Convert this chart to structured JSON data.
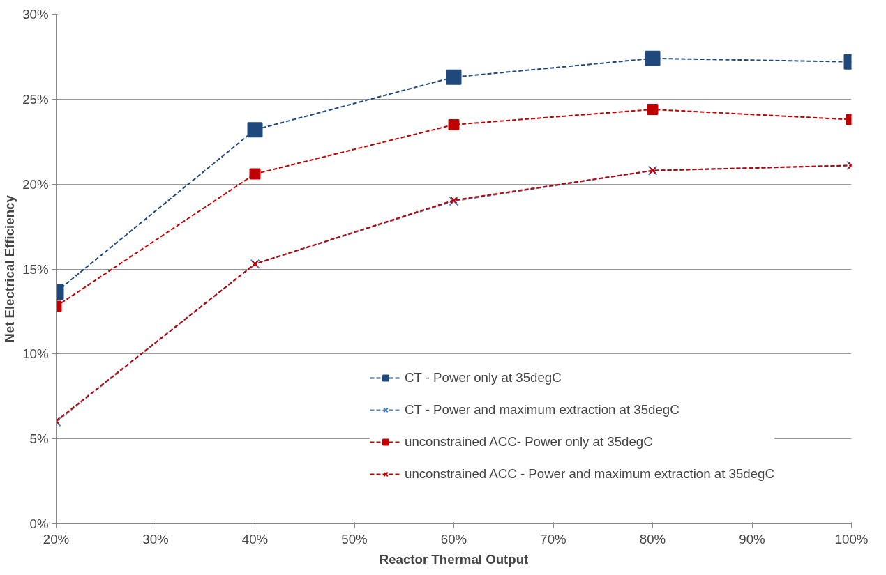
{
  "chart_data": {
    "type": "line",
    "xlabel": "Reactor Thermal Output",
    "ylabel": "Net Electrical Efficiency",
    "x": [
      20,
      40,
      60,
      80,
      100
    ],
    "series": [
      {
        "name": "CT - Power only at 35degC",
        "color": "#1f497d",
        "marker": "square",
        "values": [
          13.65,
          23.2,
          26.3,
          27.4,
          27.2
        ]
      },
      {
        "name": "CT - Power and maximum extraction at 35degC",
        "color": "#4f81bd",
        "marker": "cross",
        "values": [
          6.0,
          15.3,
          19.0,
          20.8,
          21.1
        ]
      },
      {
        "name": "unconstrained ACC- Power only at 35degC",
        "color": "#c00000",
        "marker": "square",
        "values": [
          12.8,
          20.6,
          23.5,
          24.4,
          23.8
        ]
      },
      {
        "name": "unconstrained ACC - Power and maximum extraction at 35degC",
        "color": "#c00000",
        "marker": "cross",
        "values": [
          6.05,
          15.3,
          19.05,
          20.8,
          21.1
        ]
      }
    ],
    "line_style": "dashed",
    "xlim": [
      20,
      100
    ],
    "xticks": [
      {
        "value": 20,
        "label": "20%"
      },
      {
        "value": 30,
        "label": "30%"
      },
      {
        "value": 40,
        "label": "40%"
      },
      {
        "value": 50,
        "label": "50%"
      },
      {
        "value": 60,
        "label": "60%"
      },
      {
        "value": 70,
        "label": "70%"
      },
      {
        "value": 80,
        "label": "80%"
      },
      {
        "value": 90,
        "label": "90%"
      },
      {
        "value": 100,
        "label": "100%"
      }
    ],
    "ylim": [
      0,
      30
    ],
    "yticks": [
      {
        "value": 0,
        "label": "0%"
      },
      {
        "value": 5,
        "label": "5%"
      },
      {
        "value": 10,
        "label": "10%"
      },
      {
        "value": 15,
        "label": "15%"
      },
      {
        "value": 20,
        "label": "20%"
      },
      {
        "value": 25,
        "label": "25%"
      },
      {
        "value": 30,
        "label": "30%"
      }
    ],
    "grid": "y",
    "legend": "right"
  }
}
